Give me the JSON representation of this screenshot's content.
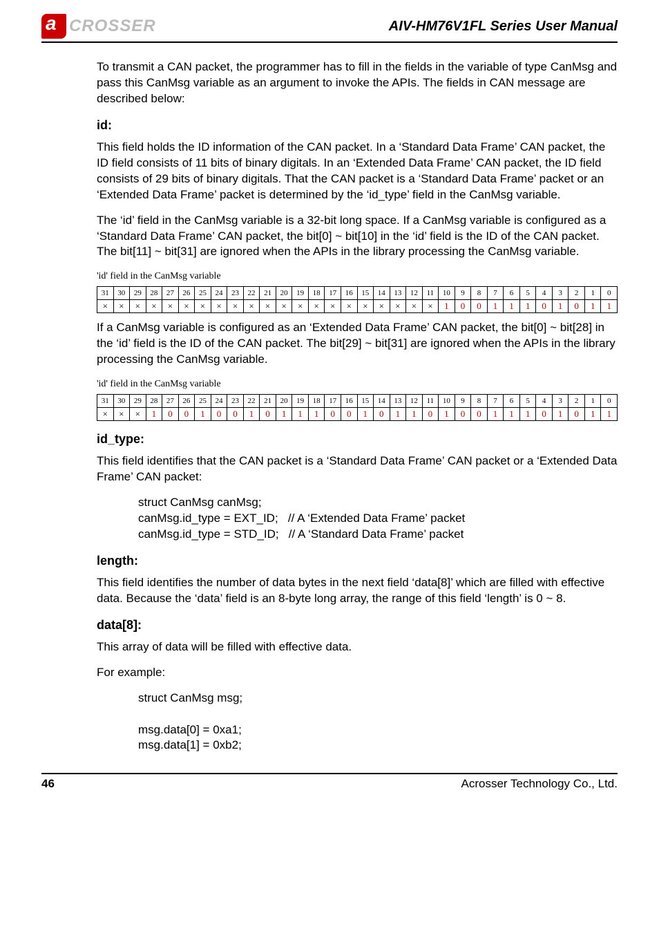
{
  "header": {
    "logo_text": "CROSSER",
    "manual_title": "AIV-HM76V1FL Series User Manual"
  },
  "intro": "To transmit a CAN packet, the programmer has to fill in the fields in the variable of type CanMsg and pass this CanMsg variable as an argument to invoke the APIs. The fields in CAN message are described below:",
  "id_section": {
    "heading": "id:",
    "para1": "This field holds the ID information of the CAN packet. In a ‘Standard Data Frame’ CAN packet, the ID field consists of 11 bits of binary digitals. In an ‘Extended Data Frame’ CAN packet, the ID field consists of 29 bits of binary digitals. That the CAN packet is a ‘Standard Data Frame’ packet or an ‘Extended Data Frame’ packet is determined by the ‘id_type’ field in the CanMsg variable.",
    "para2": "The ‘id’ field in the CanMsg variable is a 32-bit long space. If a CanMsg variable is configured as a ‘Standard Data Frame’ CAN packet, the bit[0] ~ bit[10] in the ‘id’ field is the ID of the CAN packet. The bit[11] ~ bit[31] are ignored when the APIs in the library processing the CanMsg variable.",
    "table_caption": "'id' field in the CanMsg variable",
    "bit_labels": [
      "31",
      "30",
      "29",
      "28",
      "27",
      "26",
      "25",
      "24",
      "23",
      "22",
      "21",
      "20",
      "19",
      "18",
      "17",
      "16",
      "15",
      "14",
      "13",
      "12",
      "11",
      "10",
      "9",
      "8",
      "7",
      "6",
      "5",
      "4",
      "3",
      "2",
      "1",
      "0"
    ],
    "std_values": [
      "X",
      "X",
      "X",
      "X",
      "X",
      "X",
      "X",
      "X",
      "X",
      "X",
      "X",
      "X",
      "X",
      "X",
      "X",
      "X",
      "X",
      "X",
      "X",
      "X",
      "X",
      "1",
      "0",
      "0",
      "1",
      "1",
      "1",
      "0",
      "1",
      "0",
      "1",
      "1"
    ],
    "para3": "If a CanMsg variable is configured as an ‘Extended Data Frame’ CAN packet, the bit[0] ~ bit[28] in the ‘id’ field is the ID of the CAN packet. The bit[29] ~ bit[31] are ignored when the APIs in the library processing the CanMsg variable.",
    "ext_values": [
      "X",
      "X",
      "X",
      "1",
      "0",
      "0",
      "1",
      "0",
      "0",
      "1",
      "0",
      "1",
      "1",
      "1",
      "0",
      "0",
      "1",
      "0",
      "1",
      "1",
      "0",
      "1",
      "0",
      "0",
      "1",
      "1",
      "1",
      "0",
      "1",
      "0",
      "1",
      "1"
    ]
  },
  "id_type_section": {
    "heading": "id_type:",
    "para": "This field identifies that the CAN packet is a ‘Standard Data Frame’ CAN packet or a ‘Extended Data Frame’ CAN packet:",
    "code": "struct CanMsg canMsg;\ncanMsg.id_type = EXT_ID;   // A ‘Extended Data Frame’ packet\ncanMsg.id_type = STD_ID;   // A ‘Standard Data Frame’ packet"
  },
  "length_section": {
    "heading": "length:",
    "para": "This field identifies the number of data bytes in the next field ‘data[8]’ which are filled with effective data. Because the ‘data’ field is an 8-byte long array, the range of this field ‘length’ is 0 ~ 8."
  },
  "data8_section": {
    "heading": "data[8]:",
    "para1": "This array of data will be filled with effective data.",
    "para2": "For example:",
    "code": "struct CanMsg msg;\n\nmsg.data[0] = 0xa1;\nmsg.data[1] = 0xb2;"
  },
  "footer": {
    "page_number": "46",
    "company": "Acrosser Technology Co., Ltd."
  },
  "style": {
    "value_color": "#cc0000",
    "border_color": "#000000"
  }
}
